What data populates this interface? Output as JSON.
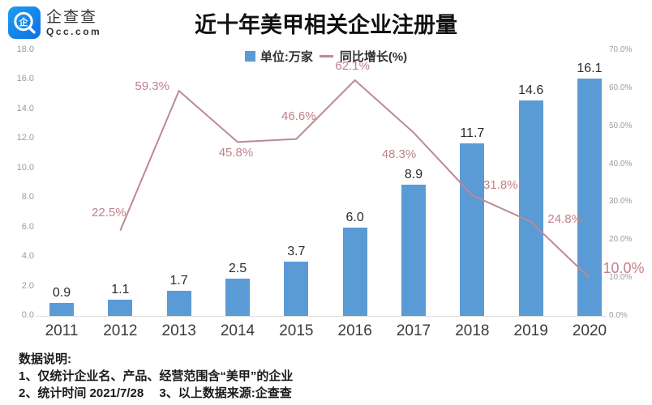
{
  "logo": {
    "name": "企查查",
    "domain": "Qcc.com",
    "brand_color": "#1585ea"
  },
  "title": "近十年美甲相关企业注册量",
  "legend": [
    {
      "label": "单位:万家",
      "swatch": "square",
      "color": "#5B9BD5"
    },
    {
      "label": "同比增长(%)",
      "swatch": "dash",
      "color": "#BC8A92"
    }
  ],
  "chart_data": {
    "type": "bar",
    "subtype": "bar+line combo",
    "title": "近十年美甲相关企业注册量",
    "categories": [
      "2011",
      "2012",
      "2013",
      "2014",
      "2015",
      "2016",
      "2017",
      "2018",
      "2019",
      "2020"
    ],
    "series": [
      {
        "name": "注册量(单位:万家)",
        "type": "bar",
        "color": "#5B9BD5",
        "values": [
          0.9,
          1.1,
          1.7,
          2.5,
          3.7,
          6.0,
          8.9,
          11.7,
          14.6,
          16.1
        ],
        "labels": [
          "0.9",
          "1.1",
          "1.7",
          "2.5",
          "3.7",
          "6.0",
          "8.9",
          "11.7",
          "14.6",
          "16.1"
        ]
      },
      {
        "name": "同比增长(%)",
        "type": "line",
        "color": "#BC8A92",
        "label_color": "#C0808A",
        "values": [
          null,
          22.5,
          59.3,
          45.8,
          46.6,
          62.1,
          48.3,
          31.8,
          24.8,
          10.0
        ],
        "labels": [
          null,
          "22.5%",
          "59.3%",
          "45.8%",
          "46.6%",
          "62.1%",
          "48.3%",
          "31.8%",
          "24.8%",
          "10.0%"
        ]
      }
    ],
    "left_axis": {
      "min": 0,
      "max": 18,
      "ticks": [
        "0.0",
        "2.0",
        "4.0",
        "6.0",
        "8.0",
        "10.0",
        "12.0",
        "14.0",
        "16.0",
        "18.0"
      ]
    },
    "right_axis": {
      "min": 0,
      "max": 70,
      "ticks": [
        "0.0%",
        "10.0%",
        "20.0%",
        "30.0%",
        "40.0%",
        "50.0%",
        "60.0%",
        "70.0%"
      ]
    },
    "grid": false,
    "legend_position": "top-center"
  },
  "footnote": {
    "heading": "数据说明:",
    "line1": "1、仅统计企业名、产品、经营范围含“美甲”的企业",
    "line2": "2、统计时间 2021/7/28　 3、以上数据来源:企查查"
  }
}
